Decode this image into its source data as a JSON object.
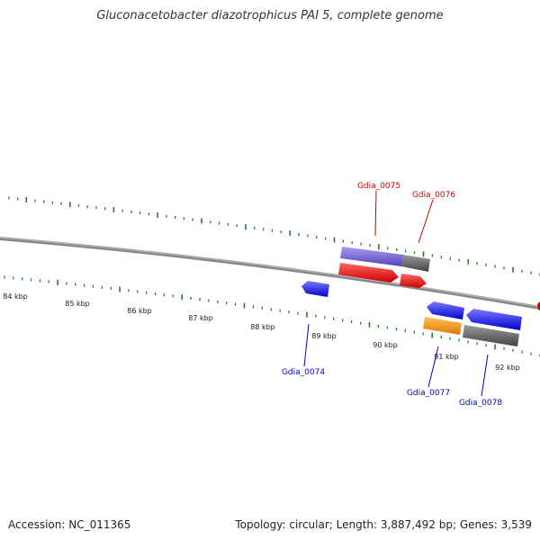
{
  "title": "Gluconacetobacter diazotrophicus PAI 5, complete genome",
  "footer": {
    "accession": "Accession: NC_011365",
    "summary": "Topology: circular; Length: 3,887,492 bp; Genes: 3,539"
  },
  "colors": {
    "backbone": "#808080",
    "ticks": "#2a7a2a",
    "forward_label": "#cc0000",
    "reverse_label": "#0000cc"
  },
  "scale_labels": [
    "84 kbp",
    "85 kbp",
    "86 kbp",
    "87 kbp",
    "88 kbp",
    "89 kbp",
    "90 kbp",
    "91 kbp",
    "92 kbp"
  ],
  "genes": [
    {
      "id": "Gdia_0074",
      "strand": "reverse",
      "color": "#1010ee"
    },
    {
      "id": "Gdia_0075",
      "strand": "forward",
      "color": "#ee1010",
      "feature_color": "#7766dd"
    },
    {
      "id": "Gdia_0076",
      "strand": "forward",
      "color": "#ee1010",
      "feature_color": "#666666"
    },
    {
      "id": "Gdia_0077",
      "strand": "reverse",
      "color": "#1010ee",
      "feature_color": "#f59a10"
    },
    {
      "id": "Gdia_0078",
      "strand": "reverse",
      "color": "#1010ee",
      "feature_color": "#666666"
    }
  ]
}
